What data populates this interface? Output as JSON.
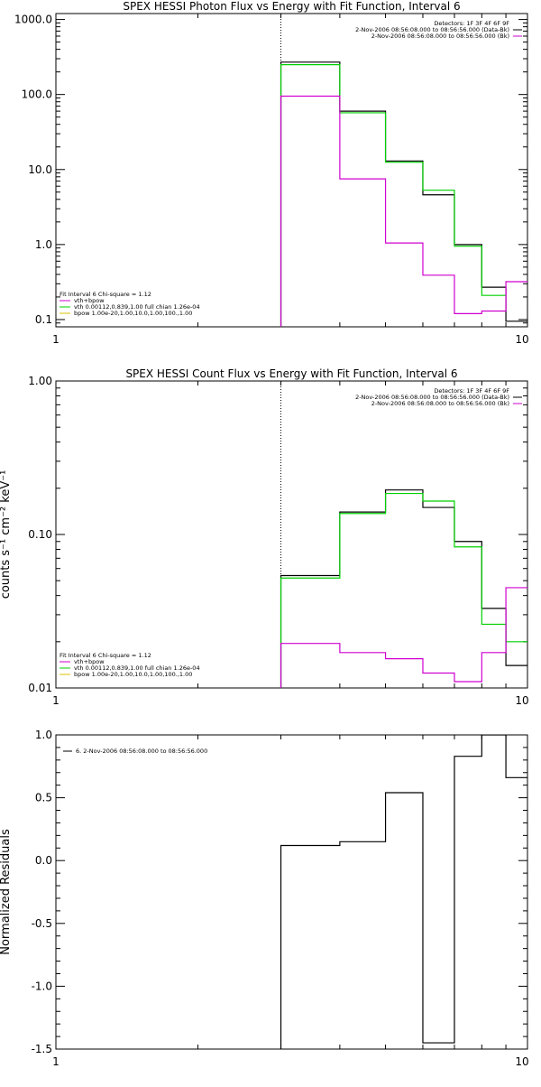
{
  "colors": {
    "data": "#000000",
    "total": "#00d000",
    "vth": "#d000d0",
    "bpow": "#d8c000",
    "background": "#ffffff"
  },
  "chart_data": [
    {
      "type": "line",
      "title": "SPEX HESSI Photon Flux vs Energy with Fit Function, Interval 6",
      "xlabel": "",
      "ylabel": "",
      "xscale": "log",
      "yscale": "log",
      "xlim": [
        1,
        10
      ],
      "ylim": [
        0.08,
        1200
      ],
      "xticks": [
        "1",
        "10"
      ],
      "yticks": [
        {
          "v": 0.1,
          "label": "0.1"
        },
        {
          "v": 1,
          "label": "1.0"
        },
        {
          "v": 10,
          "label": "10.0"
        },
        {
          "v": 100,
          "label": "100.0"
        },
        {
          "v": 1000,
          "label": "1000.0"
        }
      ],
      "marker_line_x": 3,
      "legend_top": [
        "Detectors: 1F 3F 4F 6F 9F",
        "2-Nov-2006 08:56:08.000 to 08:56:56.000 (Data-Bk)",
        "2-Nov-2006 08:56:08.000 to 08:56:56.000 (Bk)"
      ],
      "legend_bottom": [
        "Fit Interval 6    Chi-square = 1.12",
        "vth+bpow",
        "vth 0.00112,0.839,1.00   full chian 1.26e-04",
        "bpow 1.00e-20,1.00,10.0,1.00,100.,1.00"
      ],
      "x_edges": [
        3,
        4,
        5,
        6,
        7,
        8,
        9,
        10
      ],
      "series": [
        {
          "name": "2-Nov-2006 08:56:08.000 to 08:56:56.000 (Data-Bk)",
          "color": "#000000",
          "values": [
            270,
            60,
            13,
            4.6,
            1.0,
            0.27,
            0.095
          ]
        },
        {
          "name": "vth+bpow",
          "color": "#00d000",
          "values": [
            250,
            57,
            12.5,
            5.3,
            0.95,
            0.21,
            null
          ]
        },
        {
          "name": "2-Nov-2006 08:56:08.000 to 08:56:56.000 (Bk)",
          "color": "#d000d0",
          "values": [
            95,
            7.5,
            1.05,
            0.39,
            0.12,
            0.13,
            0.32
          ]
        }
      ]
    },
    {
      "type": "line",
      "title": "SPEX HESSI Count Flux vs Energy with Fit Function, Interval 6",
      "xlabel": "",
      "ylabel": "counts s⁻¹ cm⁻² keV⁻¹",
      "xscale": "log",
      "yscale": "log",
      "xlim": [
        1,
        10
      ],
      "ylim": [
        0.01,
        1.0
      ],
      "xticks": [
        "1",
        "10"
      ],
      "yticks": [
        {
          "v": 0.01,
          "label": "0.01"
        },
        {
          "v": 0.1,
          "label": "0.10"
        },
        {
          "v": 1.0,
          "label": "1.00"
        }
      ],
      "marker_line_x": 3,
      "legend_top": [
        "Detectors: 1F 3F 4F 6F 9F",
        "2-Nov-2006 08:56:08.000 to 08:56:56.000 (Data-Bk)",
        "2-Nov-2006 08:56:08.000 to 08:56:56.000 (Bk)"
      ],
      "legend_bottom": [
        "Fit Interval 6    Chi-square = 1.12",
        "vth+bpow",
        "vth 0.00112,0.839,1.00   full chian 1.26e-04",
        "bpow 1.00e-20,1.00,10.0,1.00,100.,1.00"
      ],
      "x_edges": [
        3,
        4,
        5,
        6,
        7,
        8,
        9,
        10
      ],
      "series": [
        {
          "name": "2-Nov-2006 08:56:08.000 to 08:56:56.000 (Data-Bk)",
          "color": "#000000",
          "values": [
            0.054,
            0.14,
            0.195,
            0.15,
            0.09,
            0.033,
            0.014
          ]
        },
        {
          "name": "vth+bpow",
          "color": "#00d000",
          "values": [
            0.052,
            0.137,
            0.185,
            0.165,
            0.083,
            0.026,
            0.02
          ]
        },
        {
          "name": "2-Nov-2006 08:56:08.000 to 08:56:56.000 (Bk)",
          "color": "#d000d0",
          "values": [
            0.0195,
            0.017,
            0.0155,
            0.0125,
            0.011,
            0.017,
            0.045
          ]
        }
      ]
    },
    {
      "type": "line",
      "title": "",
      "xlabel": "",
      "ylabel": "Normalized Residuals",
      "xscale": "log",
      "yscale": "linear",
      "xlim": [
        1,
        10
      ],
      "ylim": [
        -1.5,
        1.0
      ],
      "xticks": [
        "1",
        "10"
      ],
      "yticks": [
        {
          "v": 1.0,
          "label": "1.0"
        },
        {
          "v": 0.5,
          "label": "0.5"
        },
        {
          "v": 0.0,
          "label": "0.0"
        },
        {
          "v": -0.5,
          "label": "-0.5"
        },
        {
          "v": -1.0,
          "label": "-1.0"
        },
        {
          "v": -1.5,
          "label": "-1.5"
        }
      ],
      "legend_top": [
        "6. 2-Nov-2006 08:56:08.000 to 08:56:56.000"
      ],
      "x_edges": [
        3,
        4,
        5,
        6,
        7,
        8,
        9,
        10
      ],
      "series": [
        {
          "name": "6. 2-Nov-2006 08:56:08.000 to 08:56:56.000",
          "color": "#000000",
          "values": [
            0.12,
            0.15,
            0.54,
            -1.45,
            0.83,
            1.0,
            0.66
          ]
        }
      ]
    }
  ]
}
